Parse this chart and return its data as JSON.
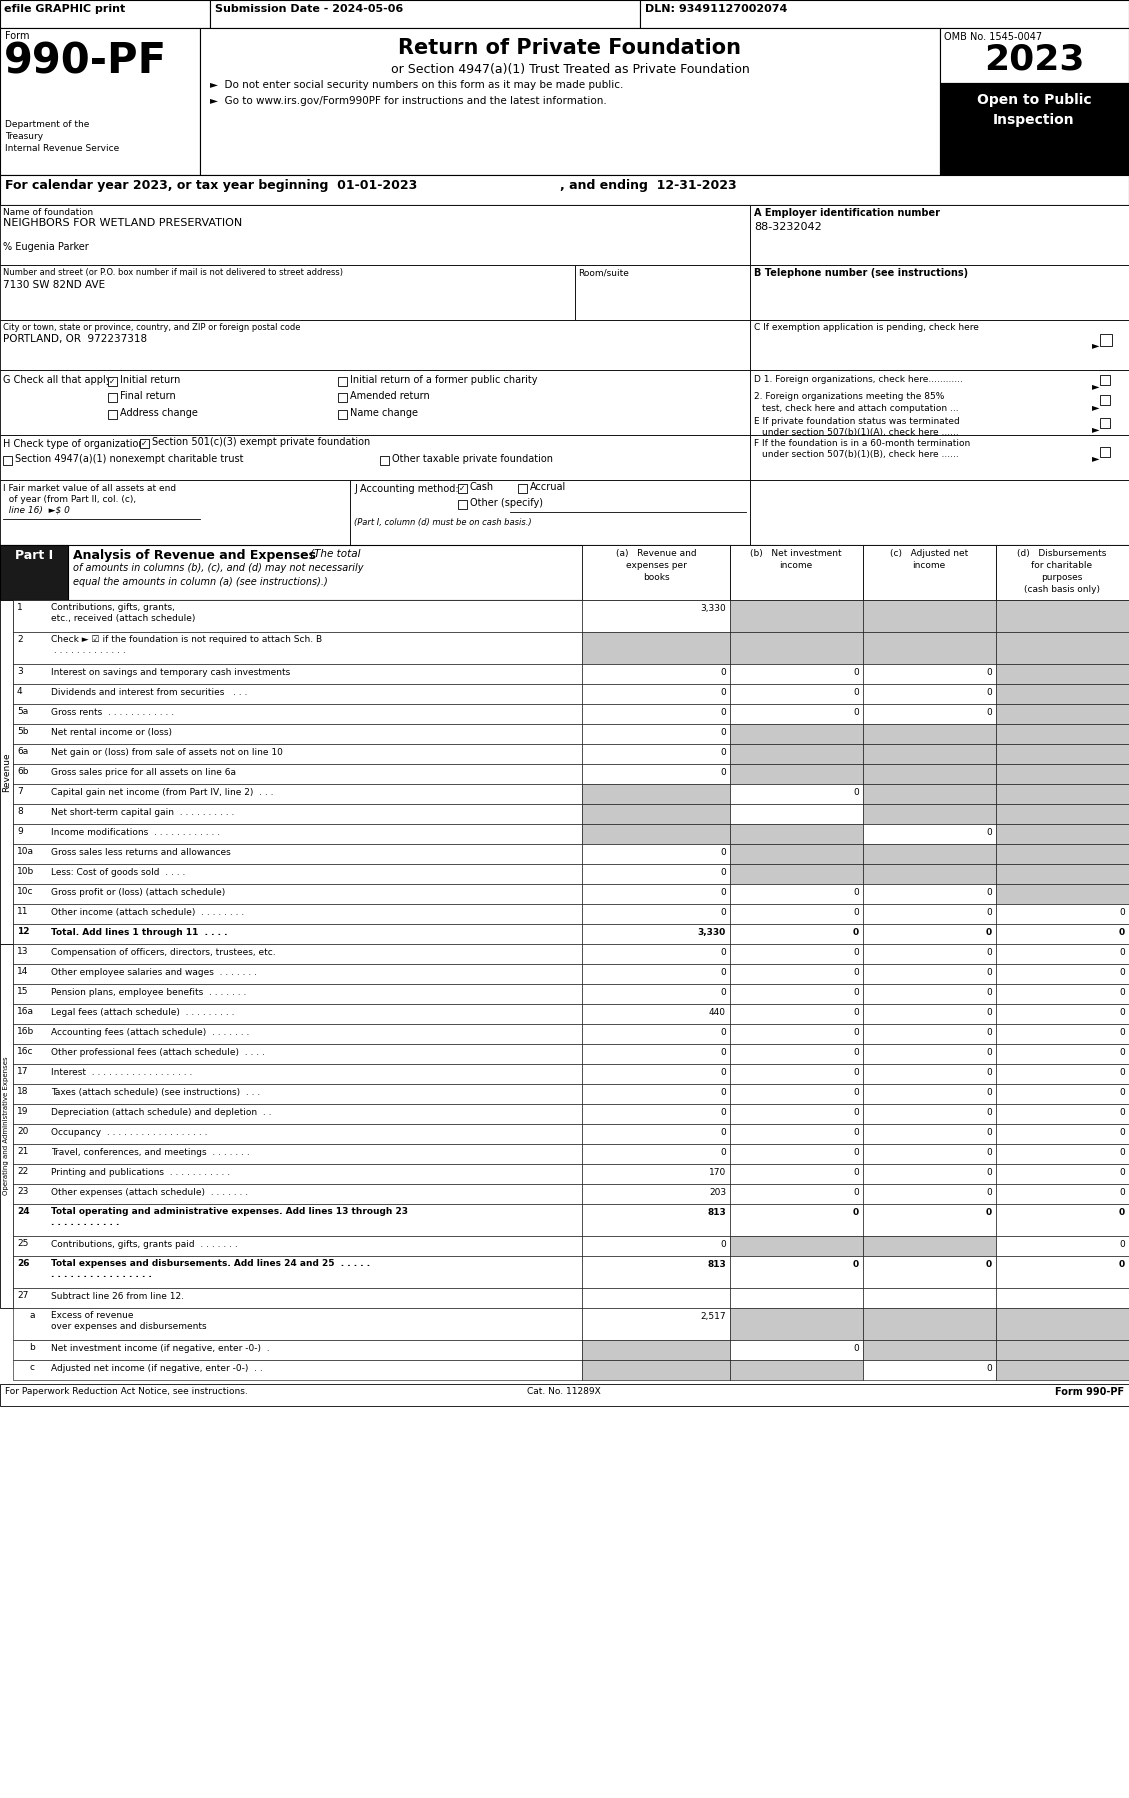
{
  "efile": "efile GRAPHIC print",
  "submission": "Submission Date - 2024-05-06",
  "dln": "DLN: 93491127002074",
  "form_number": "990-PF",
  "omb": "OMB No. 1545-0047",
  "year": "2023",
  "title": "Return of Private Foundation",
  "subtitle": "or Section 4947(a)(1) Trust Treated as Private Foundation",
  "bullet1": "►  Do not enter social security numbers on this form as it may be made public.",
  "bullet2": "►  Go to www.irs.gov/Form990PF for instructions and the latest information.",
  "cal_year": "For calendar year 2023, or tax year beginning 01-01-2023",
  "ending": ", and ending 12-31-2023",
  "foundation_name": "NEIGHBORS FOR WETLAND PRESERVATION",
  "care_of": "% Eugenia Parker",
  "ein_label": "A Employer identification number",
  "ein": "88-3232042",
  "address_label": "Number and street (or P.O. box number if mail is not delivered to street address)",
  "address": "7130 SW 82ND AVE",
  "room_label": "Room/suite",
  "phone_label": "B Telephone number (see instructions)",
  "city_label": "City or town, state or province, country, and ZIP or foreign postal code",
  "city": "PORTLAND, OR  972237318",
  "footer_left": "For Paperwork Reduction Act Notice, see instructions.",
  "footer_cat": "Cat. No. 11289X",
  "footer_right": "Form 990-PF",
  "rows": [
    {
      "num": "1",
      "label": "Contributions, gifts, grants, etc., received (attach schedule)",
      "two_line": true,
      "label2": "schedule)",
      "a": "3,330",
      "b": "",
      "c": "",
      "d": "",
      "gray_b": true,
      "gray_c": true,
      "gray_d": true,
      "bold": false,
      "tall": true
    },
    {
      "num": "2",
      "label": "Check ► ☑ if the foundation is not required to attach Sch. B  . . . . . . . . . . . . .",
      "two_line": true,
      "label2": "Sch. B  . . . . . . . . . . . . .",
      "a": "",
      "b": "",
      "c": "",
      "d": "",
      "gray_a": true,
      "gray_b": true,
      "gray_c": true,
      "gray_d": true,
      "bold": false,
      "tall": true
    },
    {
      "num": "3",
      "label": "Interest on savings and temporary cash investments",
      "a": "0",
      "b": "0",
      "c": "0",
      "d": "",
      "gray_d": true,
      "bold": false
    },
    {
      "num": "4",
      "label": "Dividends and interest from securities   . . .",
      "a": "0",
      "b": "0",
      "c": "0",
      "d": "",
      "gray_d": true,
      "bold": false
    },
    {
      "num": "5a",
      "label": "Gross rents  . . . . . . . . . . . .",
      "a": "0",
      "b": "0",
      "c": "0",
      "d": "",
      "gray_d": true,
      "bold": false
    },
    {
      "num": "5b",
      "label": "Net rental income or (loss)",
      "a": "0",
      "b": "",
      "c": "",
      "d": "",
      "gray_b": true,
      "gray_c": true,
      "gray_d": true,
      "bold": false
    },
    {
      "num": "6a",
      "label": "Net gain or (loss) from sale of assets not on line 10",
      "a": "0",
      "b": "",
      "c": "",
      "d": "",
      "gray_b": true,
      "gray_c": true,
      "gray_d": true,
      "bold": false
    },
    {
      "num": "6b",
      "label": "Gross sales price for all assets on line 6a",
      "a": "0",
      "b": "",
      "c": "",
      "d": "",
      "gray_b": true,
      "gray_c": true,
      "gray_d": true,
      "bold": false
    },
    {
      "num": "7",
      "label": "Capital gain net income (from Part IV, line 2)  . . .",
      "a": "",
      "b": "0",
      "c": "",
      "d": "",
      "gray_a": true,
      "gray_c": true,
      "gray_d": true,
      "bold": false
    },
    {
      "num": "8",
      "label": "Net short-term capital gain  . . . . . . . . . .",
      "a": "",
      "b": "",
      "c": "",
      "d": "",
      "gray_a": true,
      "gray_c": true,
      "gray_d": true,
      "bold": false
    },
    {
      "num": "9",
      "label": "Income modifications  . . . . . . . . . . . .",
      "a": "",
      "b": "",
      "c": "0",
      "d": "",
      "gray_a": true,
      "gray_b": true,
      "gray_d": true,
      "bold": false
    },
    {
      "num": "10a",
      "label": "Gross sales less returns and allowances",
      "a": "0",
      "b": "",
      "c": "",
      "d": "",
      "gray_b": true,
      "gray_c": true,
      "gray_d": true,
      "bold": false
    },
    {
      "num": "10b",
      "label": "Less: Cost of goods sold  . . . .",
      "a": "0",
      "b": "",
      "c": "",
      "d": "",
      "gray_b": true,
      "gray_c": true,
      "gray_d": true,
      "bold": false
    },
    {
      "num": "10c",
      "label": "Gross profit or (loss) (attach schedule)",
      "a": "0",
      "b": "0",
      "c": "0",
      "d": "",
      "gray_d": true,
      "bold": false
    },
    {
      "num": "11",
      "label": "Other income (attach schedule)  . . . . . . . .",
      "a": "0",
      "b": "0",
      "c": "0",
      "d": "0",
      "bold": false
    },
    {
      "num": "12",
      "label": "Total. Add lines 1 through 11  . . . .",
      "a": "3,330",
      "b": "0",
      "c": "0",
      "d": "0",
      "bold": true
    },
    {
      "num": "13",
      "label": "Compensation of officers, directors, trustees, etc.",
      "a": "0",
      "b": "0",
      "c": "0",
      "d": "0",
      "bold": false
    },
    {
      "num": "14",
      "label": "Other employee salaries and wages  . . . . . . .",
      "a": "0",
      "b": "0",
      "c": "0",
      "d": "0",
      "bold": false
    },
    {
      "num": "15",
      "label": "Pension plans, employee benefits  . . . . . . .",
      "a": "0",
      "b": "0",
      "c": "0",
      "d": "0",
      "bold": false
    },
    {
      "num": "16a",
      "label": "Legal fees (attach schedule)  . . . . . . . . .",
      "a": "440",
      "b": "0",
      "c": "0",
      "d": "0",
      "bold": false
    },
    {
      "num": "16b",
      "label": "Accounting fees (attach schedule)  . . . . . . .",
      "a": "0",
      "b": "0",
      "c": "0",
      "d": "0",
      "bold": false
    },
    {
      "num": "16c",
      "label": "Other professional fees (attach schedule)  . . . .",
      "a": "0",
      "b": "0",
      "c": "0",
      "d": "0",
      "bold": false
    },
    {
      "num": "17",
      "label": "Interest  . . . . . . . . . . . . . . . . . .",
      "a": "0",
      "b": "0",
      "c": "0",
      "d": "0",
      "bold": false
    },
    {
      "num": "18",
      "label": "Taxes (attach schedule) (see instructions)  . . .",
      "a": "0",
      "b": "0",
      "c": "0",
      "d": "0",
      "bold": false
    },
    {
      "num": "19",
      "label": "Depreciation (attach schedule) and depletion  . .",
      "a": "0",
      "b": "0",
      "c": "0",
      "d": "0",
      "bold": false
    },
    {
      "num": "20",
      "label": "Occupancy  . . . . . . . . . . . . . . . . . .",
      "a": "0",
      "b": "0",
      "c": "0",
      "d": "0",
      "bold": false
    },
    {
      "num": "21",
      "label": "Travel, conferences, and meetings  . . . . . . .",
      "a": "0",
      "b": "0",
      "c": "0",
      "d": "0",
      "bold": false
    },
    {
      "num": "22",
      "label": "Printing and publications  . . . . . . . . . . .",
      "a": "170",
      "b": "0",
      "c": "0",
      "d": "0",
      "bold": false
    },
    {
      "num": "23",
      "label": "Other expenses (attach schedule)  . . . . . . .",
      "a": "203",
      "b": "0",
      "c": "0",
      "d": "0",
      "bold": false,
      "icon": true
    },
    {
      "num": "24",
      "label": "Total operating and administrative expenses. Add lines 13 through 23  . . . . . . . . . . .",
      "two_line": true,
      "label2": "Add lines 13 through 23  . . . . . . . . . . .",
      "a": "813",
      "b": "0",
      "c": "0",
      "d": "0",
      "bold": true,
      "tall": true
    },
    {
      "num": "25",
      "label": "Contributions, gifts, grants paid  . . . . . . .",
      "a": "0",
      "b": "",
      "c": "",
      "d": "0",
      "gray_b": true,
      "gray_c": true,
      "bold": false
    },
    {
      "num": "26",
      "label": "Total expenses and disbursements. Add lines 24 and 25  . . . . . . . . . . . . . . . . . . . . .",
      "two_line": true,
      "label2": "25  . . . . . . . . . . . . . . . . . . . . .",
      "a": "813",
      "b": "0",
      "c": "0",
      "d": "0",
      "bold": true,
      "tall": true
    },
    {
      "num": "27",
      "label": "Subtract line 26 from line 12.",
      "a": "",
      "b": "",
      "c": "",
      "d": "",
      "bold": false,
      "header_only": true
    },
    {
      "num": "a",
      "label": "Excess of revenue over expenses and disbursements",
      "two_line": true,
      "label2": "disbursements",
      "a": "2,517",
      "b": "",
      "c": "",
      "d": "",
      "gray_b": true,
      "gray_c": true,
      "gray_d": true,
      "bold": false,
      "tall": true
    },
    {
      "num": "b",
      "label": "Net investment income (if negative, enter -0-)  .",
      "a": "",
      "b": "0",
      "c": "",
      "d": "",
      "gray_a": true,
      "gray_c": true,
      "gray_d": true,
      "bold": false
    },
    {
      "num": "c",
      "label": "Adjusted net income (if negative, enter -0-)  . .",
      "a": "",
      "b": "",
      "c": "0",
      "d": "",
      "gray_a": true,
      "gray_b": true,
      "gray_d": true,
      "bold": false
    }
  ]
}
